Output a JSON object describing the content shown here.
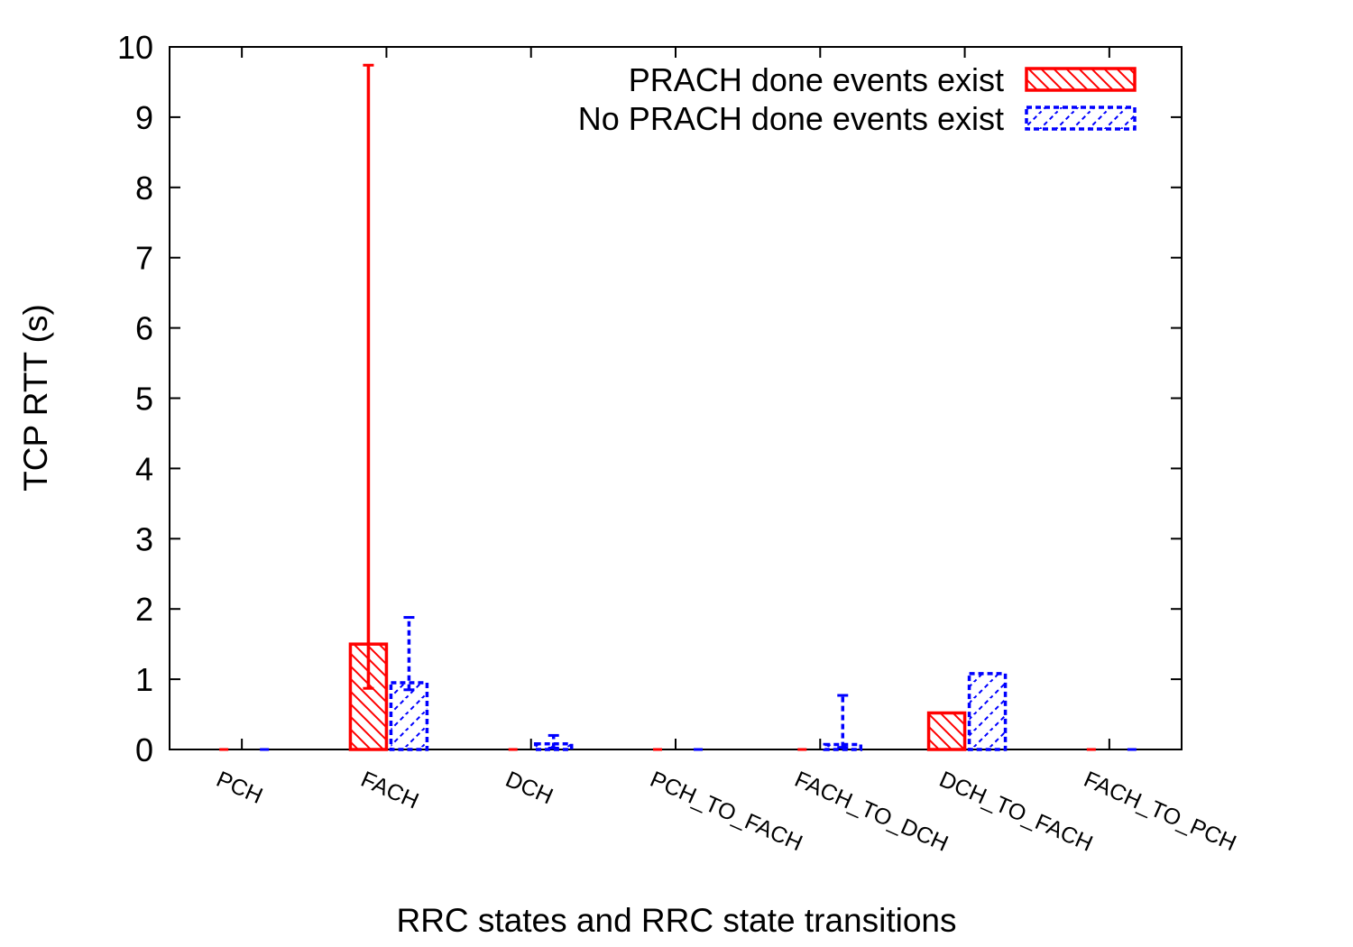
{
  "chart_data": {
    "type": "bar",
    "title": "",
    "xlabel": "RRC states and RRC state transitions",
    "ylabel": "TCP RTT (s)",
    "ylim": [
      0,
      10
    ],
    "yticks": [
      "0",
      "1",
      "2",
      "3",
      "4",
      "5",
      "6",
      "7",
      "8",
      "9",
      "10"
    ],
    "grid": false,
    "legend_position": "top-right",
    "categories": [
      "PCH",
      "FACH",
      "DCH",
      "PCH_TO_FACH",
      "FACH_TO_DCH",
      "DCH_TO_FACH",
      "FACH_TO_PCH"
    ],
    "series": [
      {
        "name": "PRACH done events exist",
        "color": "#ff0000",
        "pattern": "hatch-backslash-solid",
        "values": [
          0,
          1.5,
          0,
          0,
          0,
          0.52,
          0
        ],
        "error_low": [
          0,
          0.87,
          0,
          0,
          0,
          0.52,
          0
        ],
        "error_high": [
          0,
          9.74,
          0,
          0,
          0,
          0.52,
          0
        ]
      },
      {
        "name": "No PRACH done events exist",
        "color": "#0000ff",
        "pattern": "hatch-slash-dashed",
        "values": [
          0,
          0.95,
          0.08,
          0,
          0.07,
          1.08,
          0
        ],
        "error_low": [
          0,
          0.85,
          0.02,
          0,
          0.03,
          1.08,
          0
        ],
        "error_high": [
          0,
          1.88,
          0.2,
          0,
          0.77,
          1.08,
          0
        ]
      }
    ]
  }
}
